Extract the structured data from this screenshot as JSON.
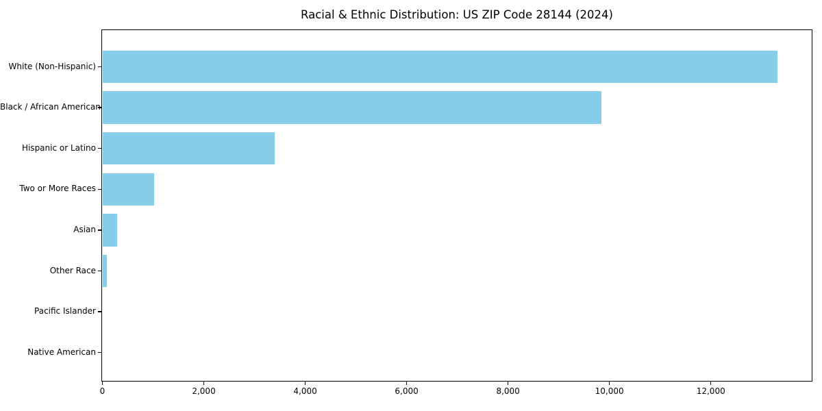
{
  "page": {
    "background": "#ffffff",
    "text_color": "#000000"
  },
  "chart_data": {
    "type": "bar",
    "orientation": "horizontal",
    "title": "Racial & Ethnic Distribution: US ZIP Code 28144 (2024)",
    "categories": [
      "White (Non-Hispanic)",
      "Black / African American",
      "Hispanic or Latino",
      "Two or More Races",
      "Asian",
      "Other Race",
      "Pacific Islander",
      "Native American"
    ],
    "values": [
      13320,
      9846,
      3394,
      1015,
      293,
      94,
      0,
      0
    ],
    "xlabel": "",
    "ylabel": "",
    "xlim": [
      0,
      13983
    ],
    "x_ticks": [
      0,
      2000,
      4000,
      6000,
      8000,
      10000,
      12000
    ],
    "x_tick_labels": [
      "0",
      "2,000",
      "4,000",
      "6,000",
      "8,000",
      "10,000",
      "12,000"
    ],
    "bar_color": "#87CEEB",
    "axis_color": "#000000",
    "grid": false,
    "legend": null
  }
}
